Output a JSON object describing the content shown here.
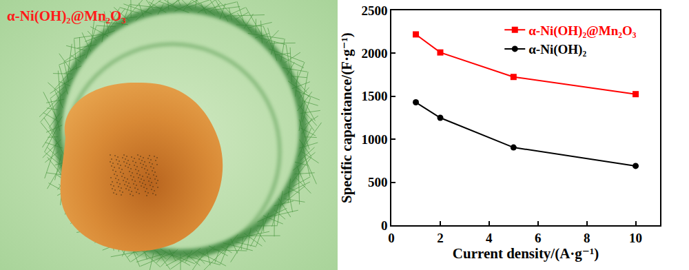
{
  "image_panel": {
    "label": "α-Ni(OH)₂@Mn₂O₃"
  },
  "chart_data": {
    "type": "line",
    "x_label": "Current density/(A·g⁻¹)",
    "y_label": "Specific capacitance/(F·g⁻¹)",
    "x": [
      1,
      2,
      5,
      10
    ],
    "series": [
      {
        "name": "α-Ni(OH)₂@Mn₂O₃",
        "color": "#ff0000",
        "marker": "square",
        "values": [
          2220,
          2010,
          1725,
          1525
        ]
      },
      {
        "name": "α-Ni(OH)₂",
        "color": "#000000",
        "marker": "circle",
        "values": [
          1430,
          1250,
          905,
          690
        ]
      }
    ],
    "xlim": [
      0,
      11
    ],
    "xticks": [
      0,
      2,
      4,
      6,
      8,
      10
    ],
    "ylim": [
      0,
      2500
    ],
    "yticks": [
      0,
      500,
      1000,
      1500,
      2000,
      2500
    ],
    "legend": "upper right",
    "grid": false
  }
}
